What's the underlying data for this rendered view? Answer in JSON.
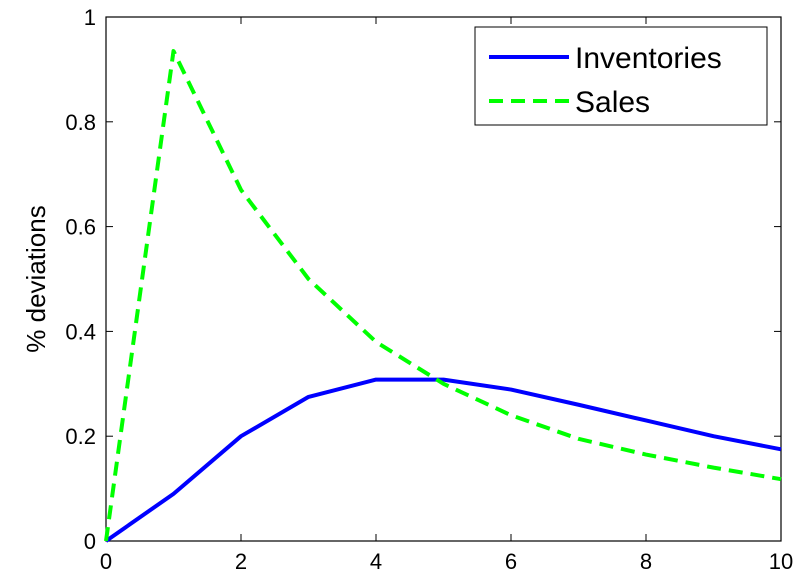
{
  "chart_data": {
    "type": "line",
    "title": "",
    "xlabel": "",
    "ylabel": "% deviations",
    "xlim": [
      0,
      10
    ],
    "ylim": [
      0,
      1
    ],
    "grid": false,
    "legend_position": "top-right",
    "xticks": [
      0,
      2,
      4,
      6,
      8,
      10
    ],
    "xtick_labels": [
      "0",
      "2",
      "4",
      "6",
      "8",
      "10"
    ],
    "yticks": [
      0,
      0.2,
      0.4,
      0.6,
      0.8,
      1
    ],
    "ytick_labels": [
      "0",
      "0.2",
      "0.4",
      "0.6",
      "0.8",
      "1"
    ],
    "x": [
      0,
      1,
      2,
      3,
      4,
      5,
      6,
      7,
      8,
      9,
      10
    ],
    "series": [
      {
        "name": "Inventories",
        "color": "#0000ff",
        "line_style": "solid",
        "values": [
          0,
          0.09,
          0.2,
          0.275,
          0.308,
          0.308,
          0.289,
          0.26,
          0.23,
          0.2,
          0.175
        ]
      },
      {
        "name": "Sales",
        "color": "#00ff00",
        "line_style": "dashed",
        "values": [
          0,
          0.935,
          0.67,
          0.5,
          0.38,
          0.3,
          0.24,
          0.195,
          0.165,
          0.14,
          0.118
        ]
      }
    ]
  }
}
